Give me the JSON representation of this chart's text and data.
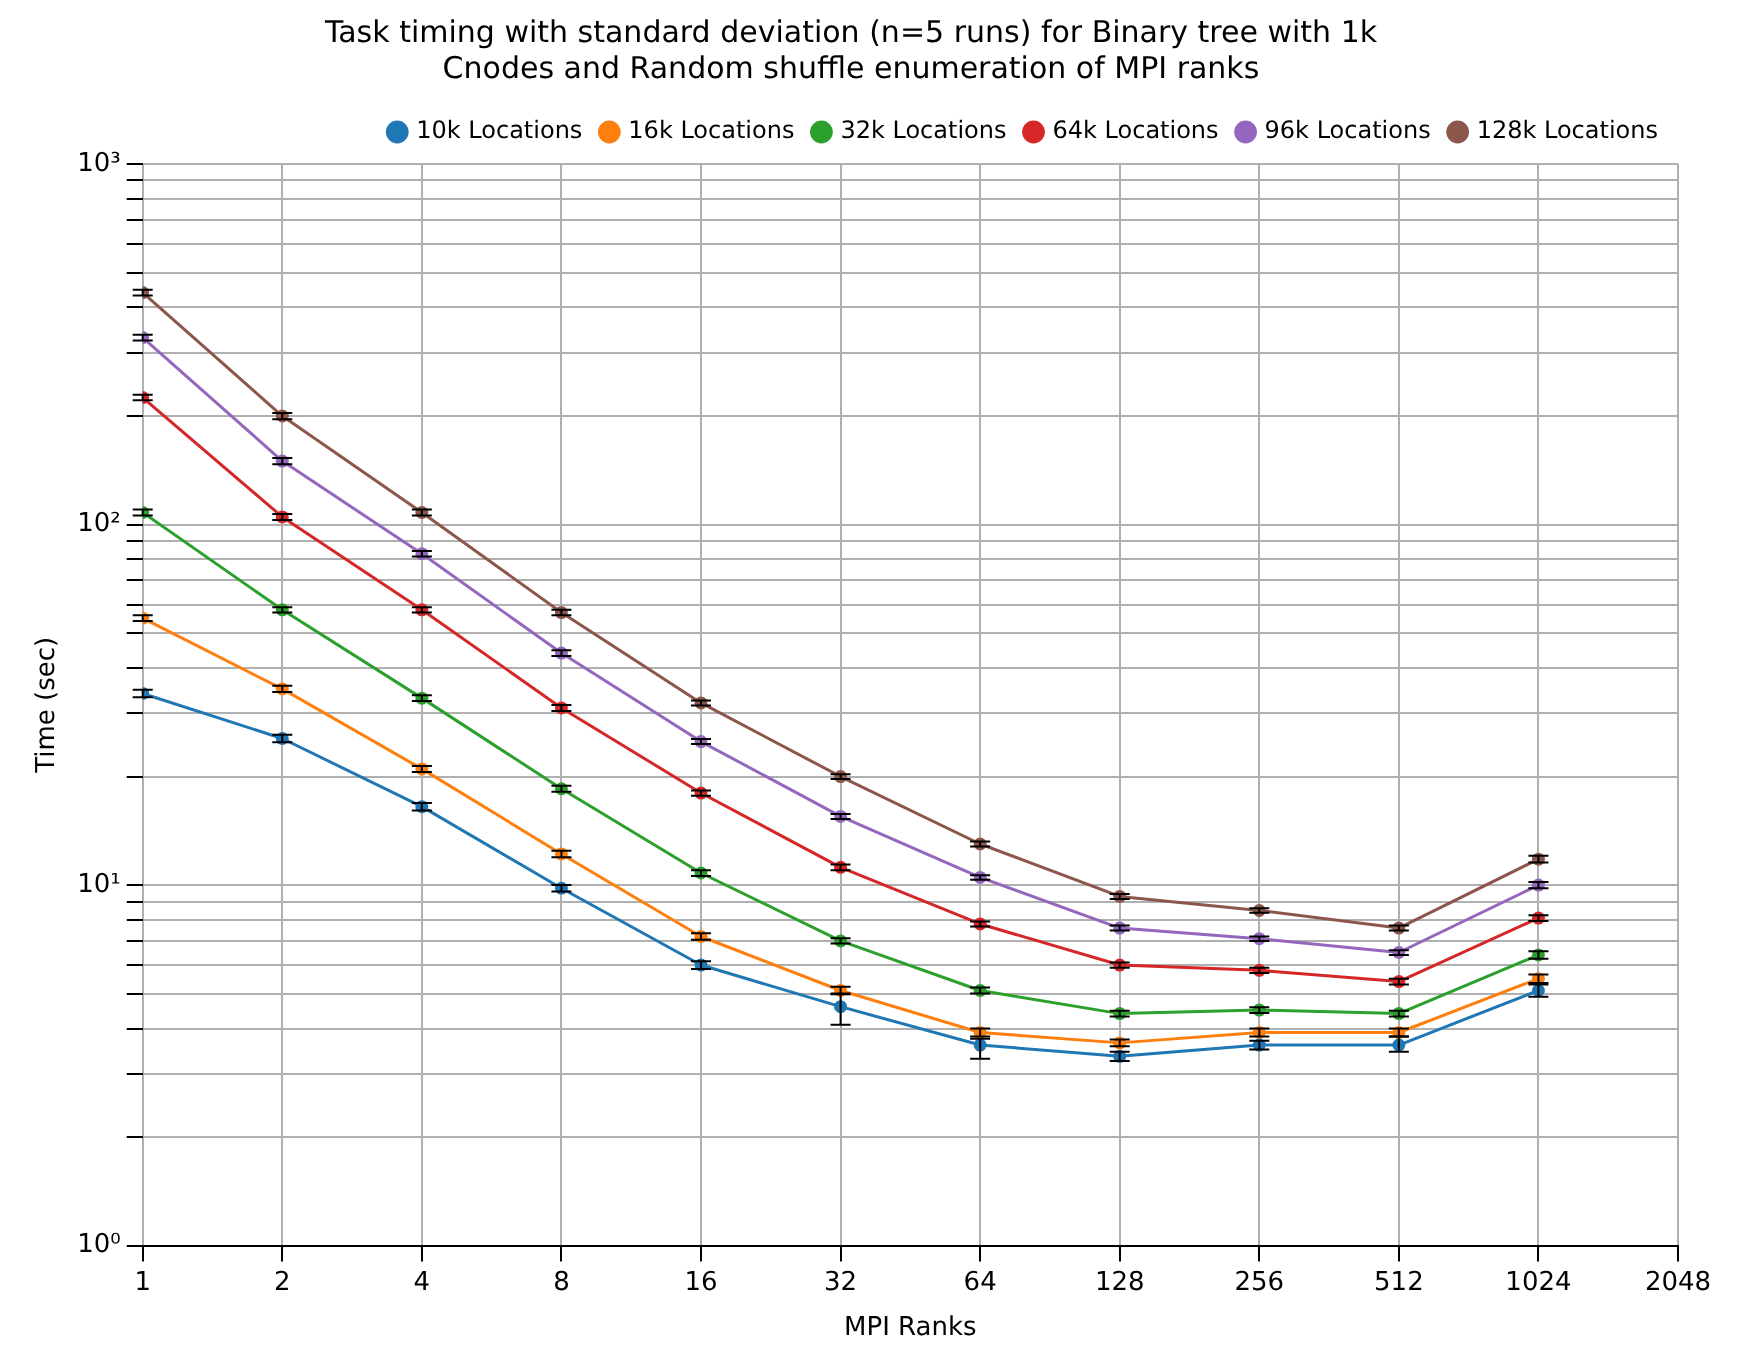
{
  "chart_data": {
    "type": "line",
    "title": "Task timing with standard deviation (n=5 runs) for Binary tree with 1k Cnodes and Random shuffle enumeration of MPI ranks",
    "xlabel": "MPI Ranks",
    "ylabel": "Time (sec)",
    "log": "xy",
    "x": [
      1,
      2,
      4,
      8,
      16,
      32,
      64,
      128,
      256,
      512,
      1024
    ],
    "xlim": [
      1,
      2048
    ],
    "xticks": [
      1,
      2,
      4,
      8,
      16,
      32,
      64,
      128,
      256,
      512,
      1024,
      2048
    ],
    "ylim": [
      1,
      1000
    ],
    "yticks": [
      {
        "value": 1,
        "label": "10⁰"
      },
      {
        "value": 2,
        "label": null
      },
      {
        "value": 3,
        "label": null
      },
      {
        "value": 4,
        "label": null
      },
      {
        "value": 5,
        "label": null
      },
      {
        "value": 6,
        "label": null
      },
      {
        "value": 7,
        "label": null
      },
      {
        "value": 8,
        "label": null
      },
      {
        "value": 9,
        "label": null
      },
      {
        "value": 10,
        "label": "10¹"
      },
      {
        "value": 20,
        "label": null
      },
      {
        "value": 30,
        "label": null
      },
      {
        "value": 40,
        "label": null
      },
      {
        "value": 50,
        "label": null
      },
      {
        "value": 60,
        "label": null
      },
      {
        "value": 70,
        "label": null
      },
      {
        "value": 80,
        "label": null
      },
      {
        "value": 90,
        "label": null
      },
      {
        "value": 100,
        "label": "10²"
      },
      {
        "value": 200,
        "label": null
      },
      {
        "value": 300,
        "label": null
      },
      {
        "value": 400,
        "label": null
      },
      {
        "value": 500,
        "label": null
      },
      {
        "value": 600,
        "label": null
      },
      {
        "value": 700,
        "label": null
      },
      {
        "value": 800,
        "label": null
      },
      {
        "value": 900,
        "label": null
      },
      {
        "value": 1000,
        "label": "10³"
      }
    ],
    "grid": true,
    "legend": "top right",
    "marker": "circle",
    "line_style": "solid",
    "series": [
      {
        "name": "10k Locations",
        "color": "#1f77b4",
        "values": [
          34,
          25.5,
          16.5,
          9.8,
          6.0,
          4.6,
          3.6,
          3.35,
          3.6,
          3.6,
          5.1
        ],
        "errors": [
          0.8,
          0.6,
          0.4,
          0.2,
          0.15,
          [
            4.1,
            5.0
          ],
          [
            3.3,
            3.75
          ],
          0.1,
          0.1,
          [
            3.45,
            3.8
          ],
          [
            4.9,
            5.3
          ]
        ]
      },
      {
        "name": "16k Locations",
        "color": "#ff7f0e",
        "values": [
          55,
          35,
          21,
          12.2,
          7.2,
          5.1,
          3.9,
          3.65,
          3.9,
          3.9,
          5.5
        ],
        "errors": [
          1,
          0.7,
          0.4,
          0.25,
          0.15,
          0.12,
          0.1,
          0.08,
          0.1,
          0.1,
          0.15
        ]
      },
      {
        "name": "32k Locations",
        "color": "#2ca02c",
        "values": [
          108,
          58,
          33,
          18.5,
          10.8,
          7.0,
          5.1,
          4.4,
          4.5,
          4.4,
          6.4
        ],
        "errors": [
          2,
          1,
          0.6,
          0.35,
          0.2,
          0.12,
          0.1,
          0.08,
          0.08,
          0.08,
          0.15
        ]
      },
      {
        "name": "64k Locations",
        "color": "#d62728",
        "values": [
          225,
          105,
          58,
          31,
          18,
          11.2,
          7.8,
          6.0,
          5.8,
          5.4,
          8.1
        ],
        "errors": [
          4,
          2,
          1,
          0.6,
          0.3,
          0.2,
          0.12,
          0.1,
          0.1,
          0.1,
          0.15
        ]
      },
      {
        "name": "96k Locations",
        "color": "#9467bd",
        "values": [
          330,
          150,
          83,
          44,
          25,
          15.5,
          10.5,
          7.6,
          7.1,
          6.5,
          10
        ],
        "errors": [
          6,
          3,
          1.5,
          0.8,
          0.4,
          0.25,
          0.15,
          0.12,
          0.1,
          0.1,
          0.2
        ]
      },
      {
        "name": "128k Locations",
        "color": "#8c564b",
        "values": [
          440,
          200,
          108,
          57,
          32,
          20,
          13,
          9.3,
          8.5,
          7.6,
          11.8
        ],
        "errors": [
          8,
          4,
          2,
          1,
          0.5,
          0.3,
          0.2,
          0.15,
          0.12,
          0.12,
          0.25
        ]
      }
    ]
  }
}
